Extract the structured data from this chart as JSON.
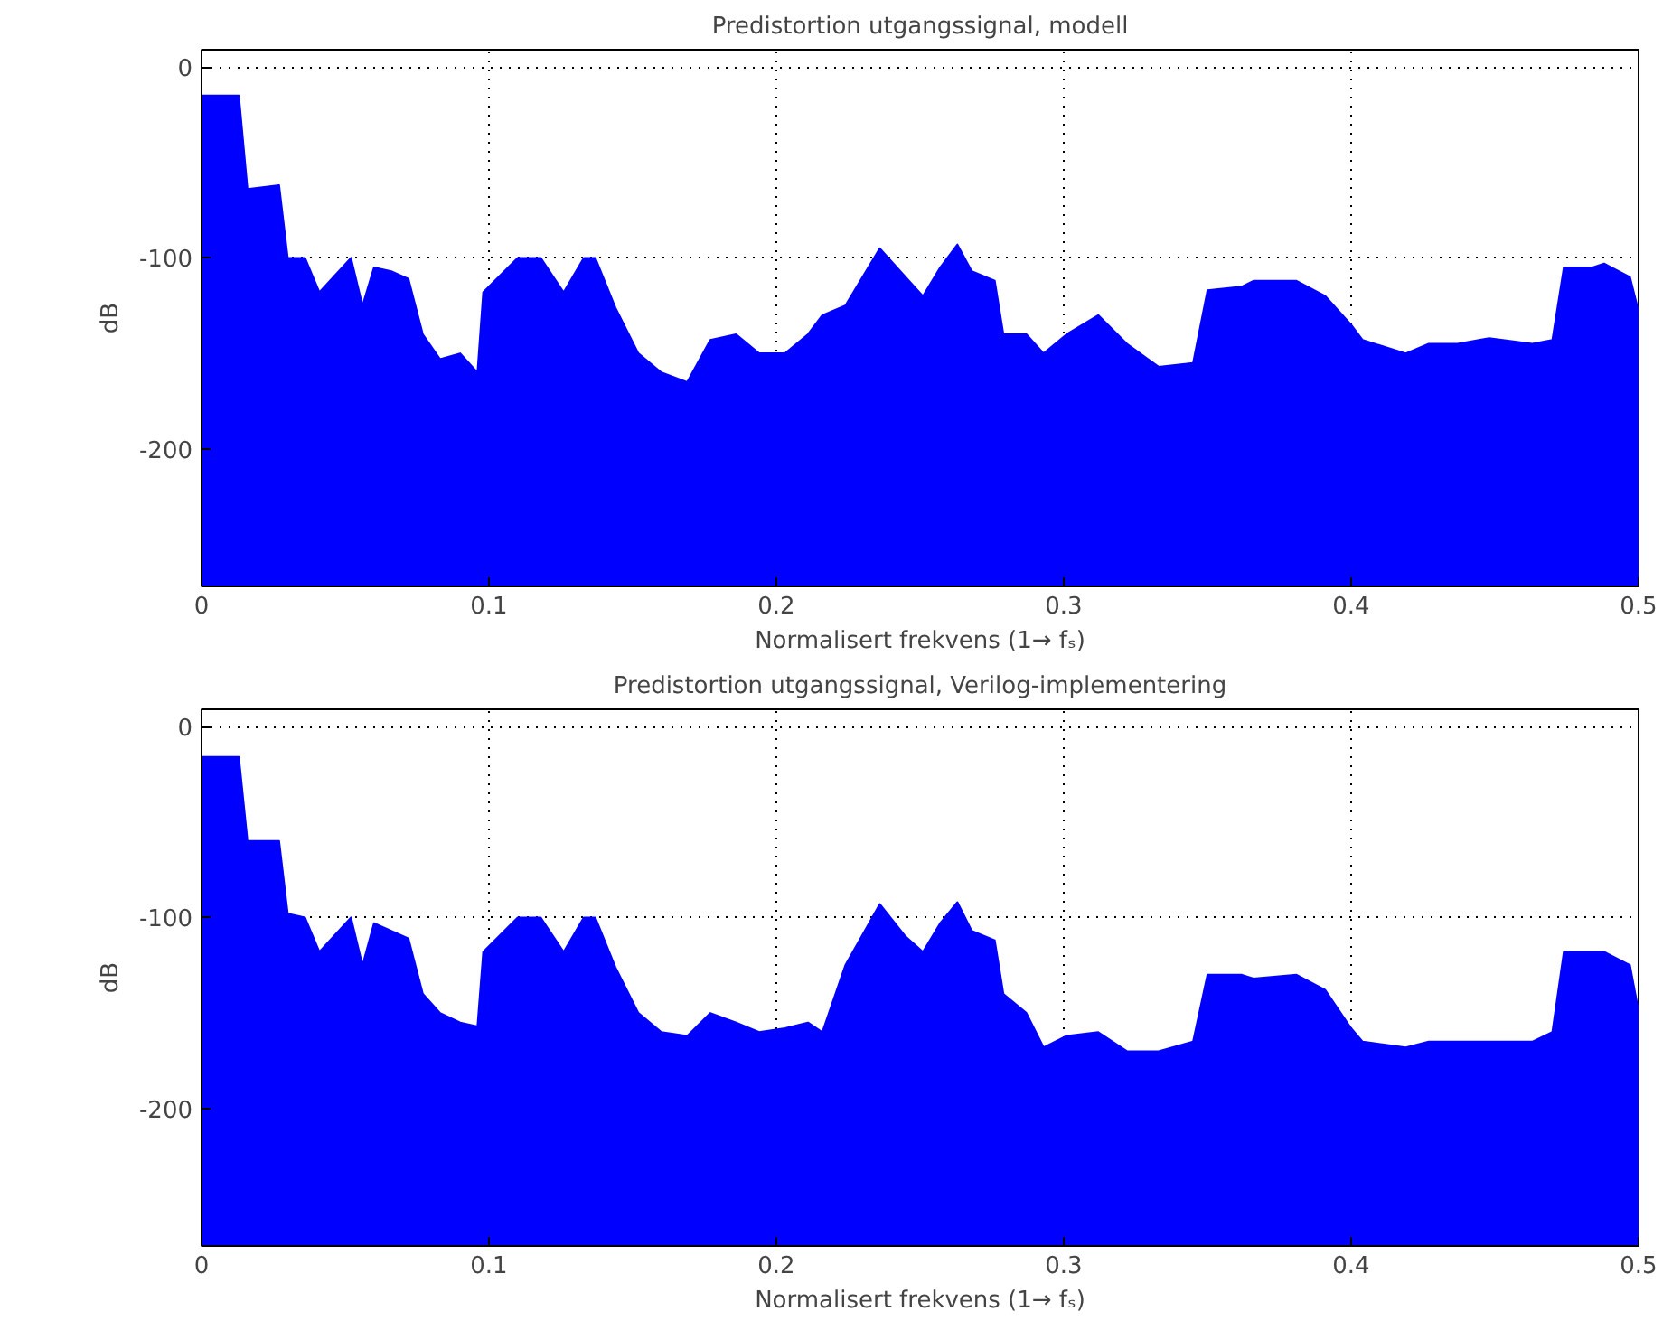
{
  "chart_data": [
    {
      "type": "area",
      "title": "Predistortion utgangssignal, modell",
      "xlabel": "Normalisert frekvens (1→ fₛ)",
      "ylabel": "dB",
      "xlim": [
        0,
        0.5
      ],
      "ylim": [
        -272,
        9
      ],
      "xticks": [
        0,
        0.1,
        0.2,
        0.3,
        0.4,
        0.5
      ],
      "yticks": [
        0,
        -100,
        -200
      ],
      "grid": true,
      "series": [
        {
          "color": "#0000ff",
          "x": [
            0,
            0.004,
            0.013,
            0.016,
            0.027,
            0.03,
            0.036,
            0.041,
            0.052,
            0.056,
            0.06,
            0.066,
            0.072,
            0.077,
            0.083,
            0.09,
            0.096,
            0.098,
            0.11,
            0.118,
            0.126,
            0.133,
            0.137,
            0.144,
            0.152,
            0.16,
            0.169,
            0.177,
            0.186,
            0.194,
            0.203,
            0.211,
            0.216,
            0.224,
            0.236,
            0.245,
            0.251,
            0.257,
            0.263,
            0.268,
            0.276,
            0.279,
            0.287,
            0.293,
            0.301,
            0.312,
            0.322,
            0.333,
            0.345,
            0.35,
            0.362,
            0.366,
            0.381,
            0.391,
            0.4,
            0.404,
            0.419,
            0.427,
            0.437,
            0.448,
            0.463,
            0.47,
            0.474,
            0.484,
            0.488,
            0.497,
            0.5
          ],
          "values": [
            -15,
            -15,
            -15,
            -64,
            -62,
            -100,
            -100,
            -118,
            -100,
            -125,
            -105,
            -107,
            -111,
            -140,
            -153,
            -150,
            -160,
            -118,
            -100,
            -100,
            -118,
            -100,
            -100,
            -126,
            -150,
            -160,
            -165,
            -143,
            -140,
            -150,
            -150,
            -140,
            -130,
            -125,
            -95,
            -110,
            -120,
            -105,
            -93,
            -107,
            -112,
            -140,
            -140,
            -150,
            -140,
            -130,
            -145,
            -157,
            -155,
            -117,
            -115,
            -112,
            -112,
            -120,
            -135,
            -143,
            -150,
            -145,
            -145,
            -142,
            -145,
            -143,
            -105,
            -105,
            -103,
            -110,
            -128
          ]
        }
      ]
    },
    {
      "type": "area",
      "title": "Predistortion utgangssignal, Verilog-implementering",
      "xlabel": "Normalisert frekvens (1→ fₛ)",
      "ylabel": "dB",
      "xlim": [
        0,
        0.5
      ],
      "ylim": [
        -272,
        9
      ],
      "xticks": [
        0,
        0.1,
        0.2,
        0.3,
        0.4,
        0.5
      ],
      "yticks": [
        0,
        -100,
        -200
      ],
      "grid": true,
      "series": [
        {
          "color": "#0000ff",
          "x": [
            0,
            0.004,
            0.013,
            0.016,
            0.027,
            0.03,
            0.036,
            0.041,
            0.052,
            0.056,
            0.06,
            0.066,
            0.072,
            0.077,
            0.083,
            0.09,
            0.096,
            0.098,
            0.11,
            0.118,
            0.126,
            0.133,
            0.137,
            0.144,
            0.152,
            0.16,
            0.169,
            0.177,
            0.186,
            0.194,
            0.203,
            0.211,
            0.216,
            0.224,
            0.236,
            0.245,
            0.251,
            0.257,
            0.263,
            0.268,
            0.276,
            0.279,
            0.287,
            0.293,
            0.301,
            0.312,
            0.322,
            0.333,
            0.345,
            0.35,
            0.362,
            0.366,
            0.381,
            0.391,
            0.4,
            0.404,
            0.419,
            0.427,
            0.437,
            0.448,
            0.463,
            0.47,
            0.474,
            0.484,
            0.488,
            0.497,
            0.5
          ],
          "values": [
            -16,
            -16,
            -16,
            -60,
            -60,
            -98,
            -100,
            -118,
            -100,
            -125,
            -103,
            -107,
            -111,
            -140,
            -150,
            -155,
            -157,
            -118,
            -100,
            -100,
            -118,
            -100,
            -100,
            -126,
            -150,
            -160,
            -162,
            -150,
            -155,
            -160,
            -158,
            -155,
            -160,
            -125,
            -93,
            -110,
            -118,
            -103,
            -92,
            -107,
            -112,
            -140,
            -150,
            -168,
            -162,
            -160,
            -170,
            -170,
            -165,
            -130,
            -130,
            -132,
            -130,
            -138,
            -158,
            -165,
            -168,
            -165,
            -165,
            -165,
            -165,
            -160,
            -118,
            -118,
            -118,
            -125,
            -149
          ]
        }
      ]
    }
  ]
}
